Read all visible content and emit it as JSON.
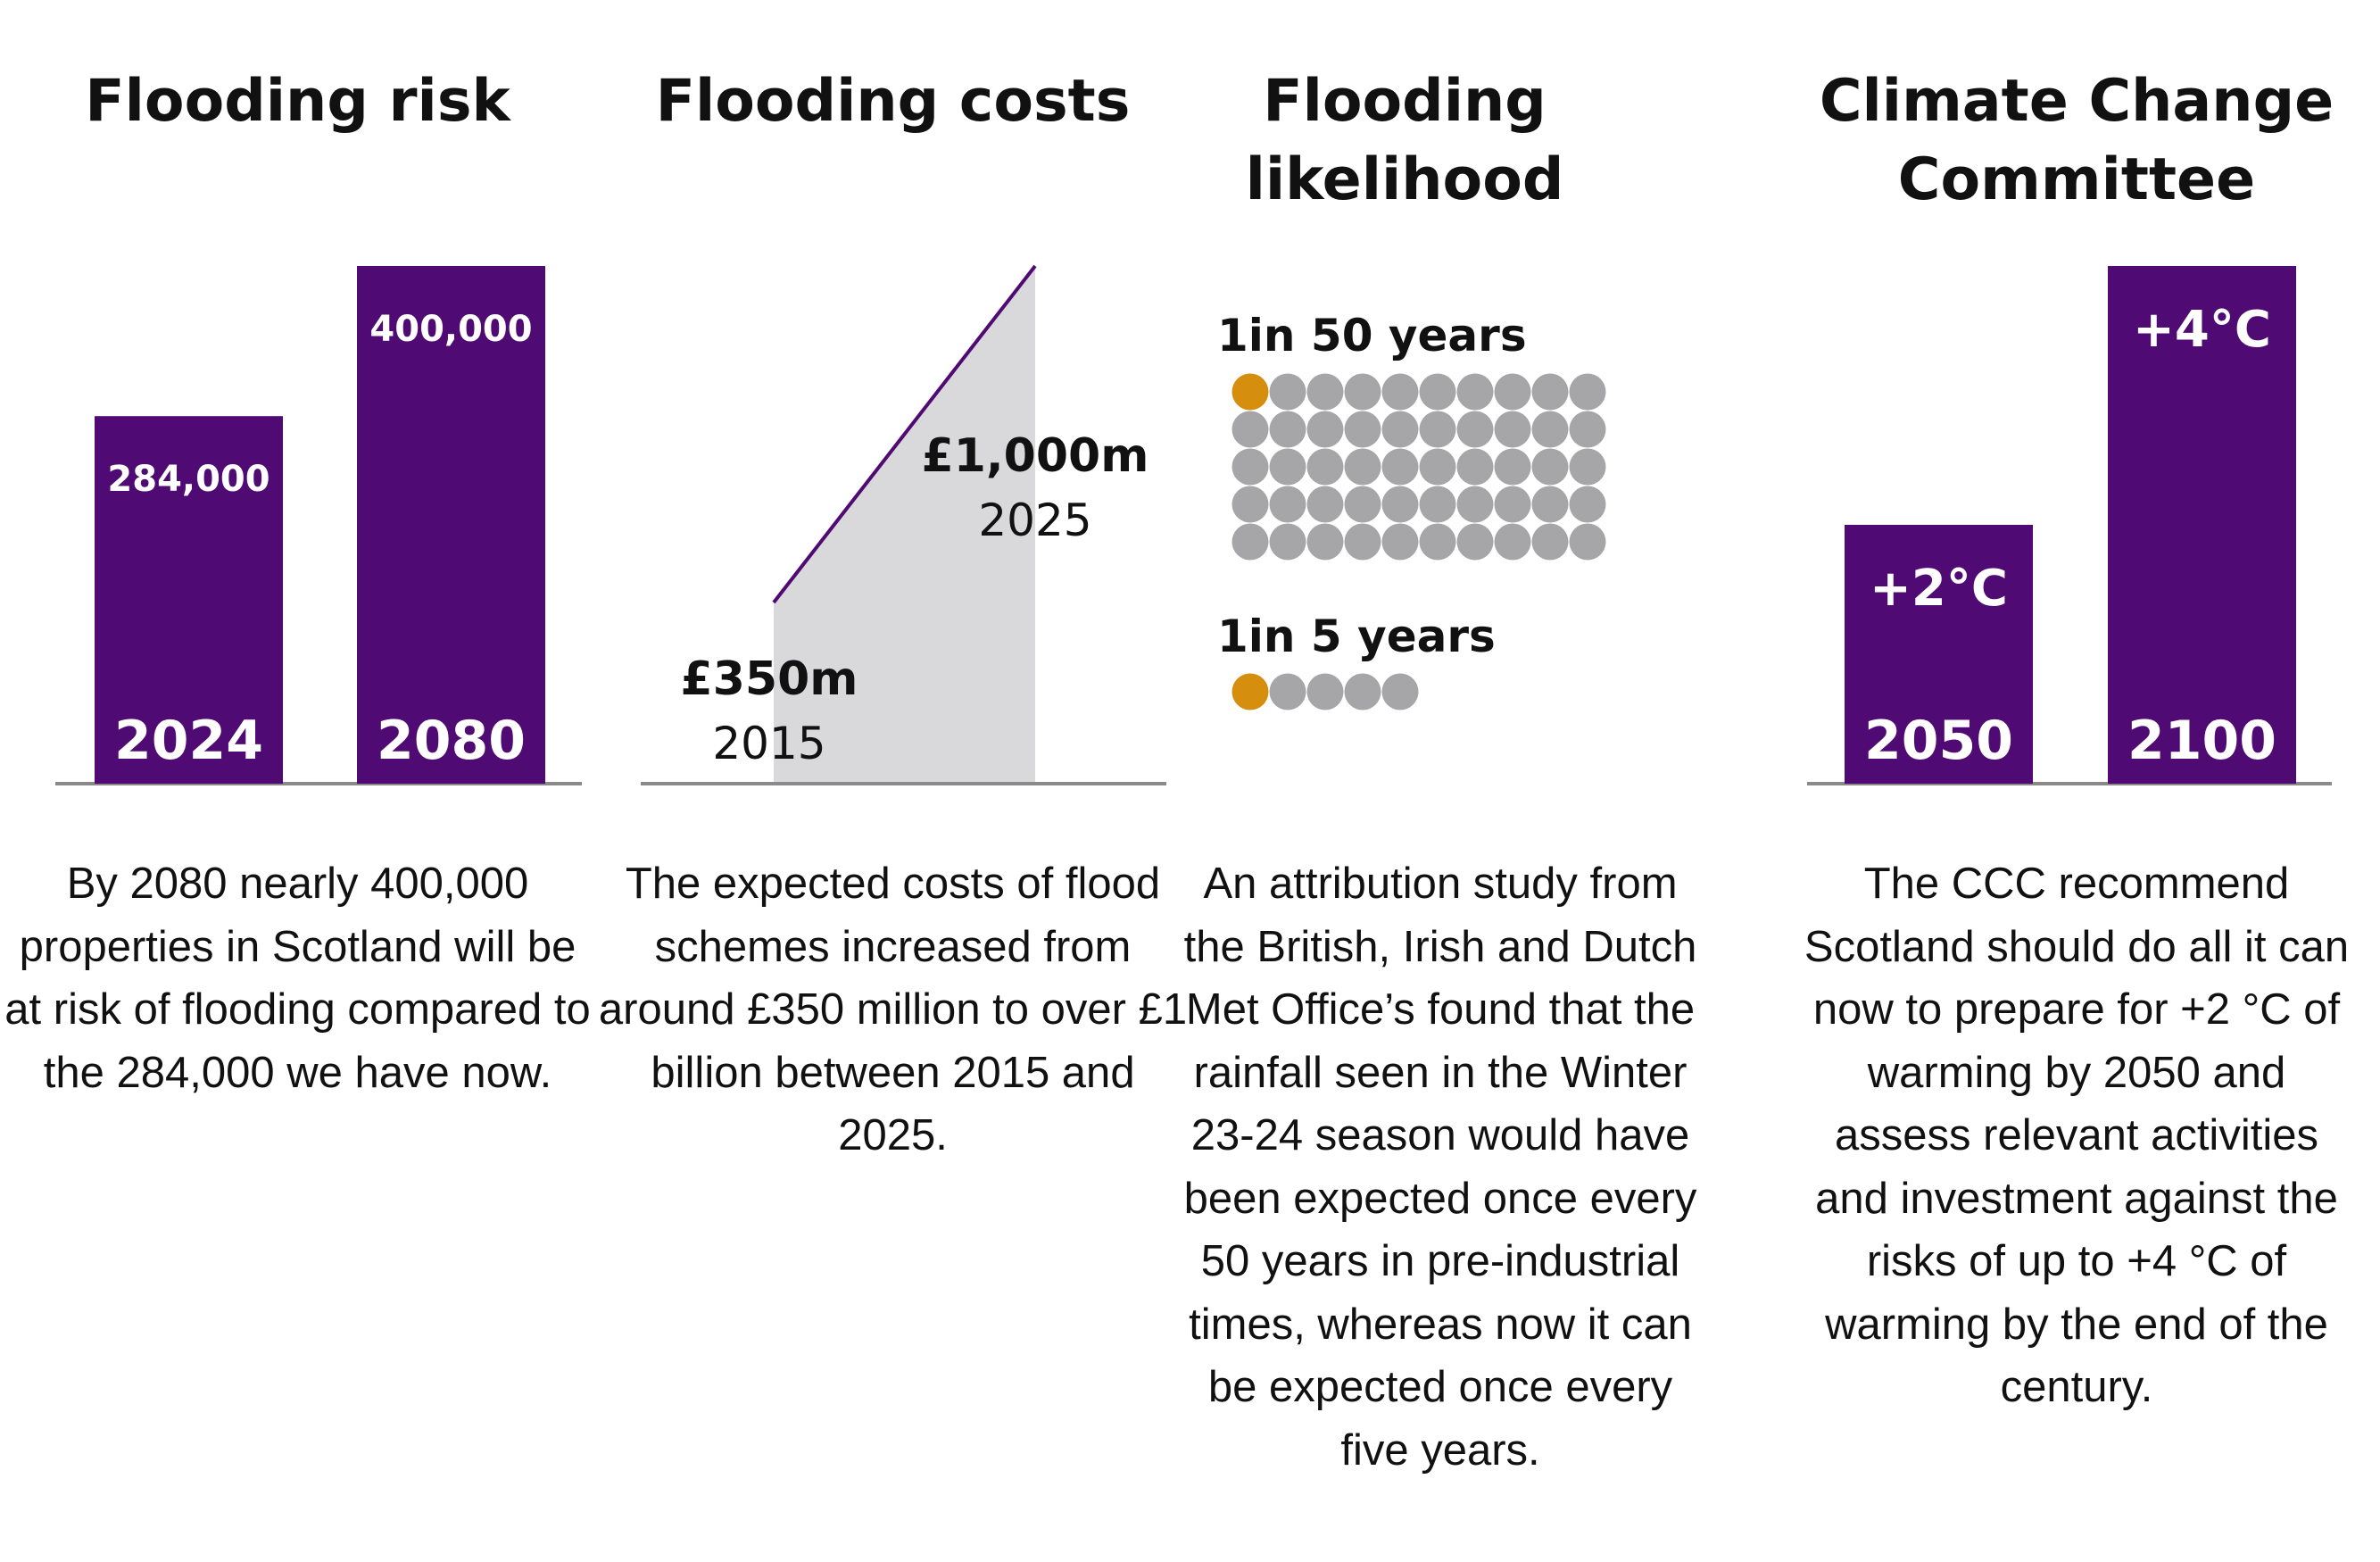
{
  "colors": {
    "bar": "#4f0b73",
    "baseline": "#8a8a8a",
    "area": "#d9d9db",
    "dot": "#a6a6a8",
    "highlight": "#d68e0f"
  },
  "panels": [
    {
      "title": "Flooding risk",
      "body": "By 2080 nearly 400,000 properties in Scotland will be at risk of flooding compared to the 284,000 we have now."
    },
    {
      "title": "Flooding costs",
      "body": "The expected costs of flood schemes increased from around £350 million to over £1 billion between 2015 and 2025."
    },
    {
      "title": "Flooding likelihood",
      "body": "An attribution study from the British, Irish and Dutch Met Office’s found that the rainfall seen in the Winter 23-24 season would have been expected once every 50 years in pre-industrial times, whereas now it can be expected once every five years."
    },
    {
      "title": "Climate Change Committee",
      "body": "The CCC recommend Scotland should do all it can now to prepare for +2 °C of warming by 2050 and assess relevant activities and investment against the risks of up to +4 °C of warming by the end of the century."
    }
  ],
  "chart_data": [
    {
      "type": "bar",
      "title": "Flooding risk",
      "categories": [
        "2024",
        "2080"
      ],
      "values": [
        284000,
        400000
      ],
      "value_labels": [
        "284,000",
        "400,000"
      ],
      "ylim": [
        0,
        400000
      ]
    },
    {
      "type": "area",
      "title": "Flooding costs",
      "x": [
        "2015",
        "2025"
      ],
      "values": [
        350,
        1000
      ],
      "value_labels": [
        "£350m",
        "£1,000m"
      ],
      "unit": "£m",
      "ylim": [
        0,
        1000
      ]
    },
    {
      "type": "pictogram",
      "title": "Flooding likelihood",
      "groups": [
        {
          "label": "1in 50 years",
          "total": 50,
          "highlighted": 1,
          "columns": 10
        },
        {
          "label": "1in 5 years",
          "total": 5,
          "highlighted": 1,
          "columns": 5
        }
      ]
    },
    {
      "type": "bar",
      "title": "Climate Change Committee",
      "categories": [
        "2050",
        "2100"
      ],
      "values": [
        2,
        4
      ],
      "value_labels": [
        "+2°C",
        "+4°C"
      ],
      "ylim": [
        0,
        4
      ]
    }
  ]
}
